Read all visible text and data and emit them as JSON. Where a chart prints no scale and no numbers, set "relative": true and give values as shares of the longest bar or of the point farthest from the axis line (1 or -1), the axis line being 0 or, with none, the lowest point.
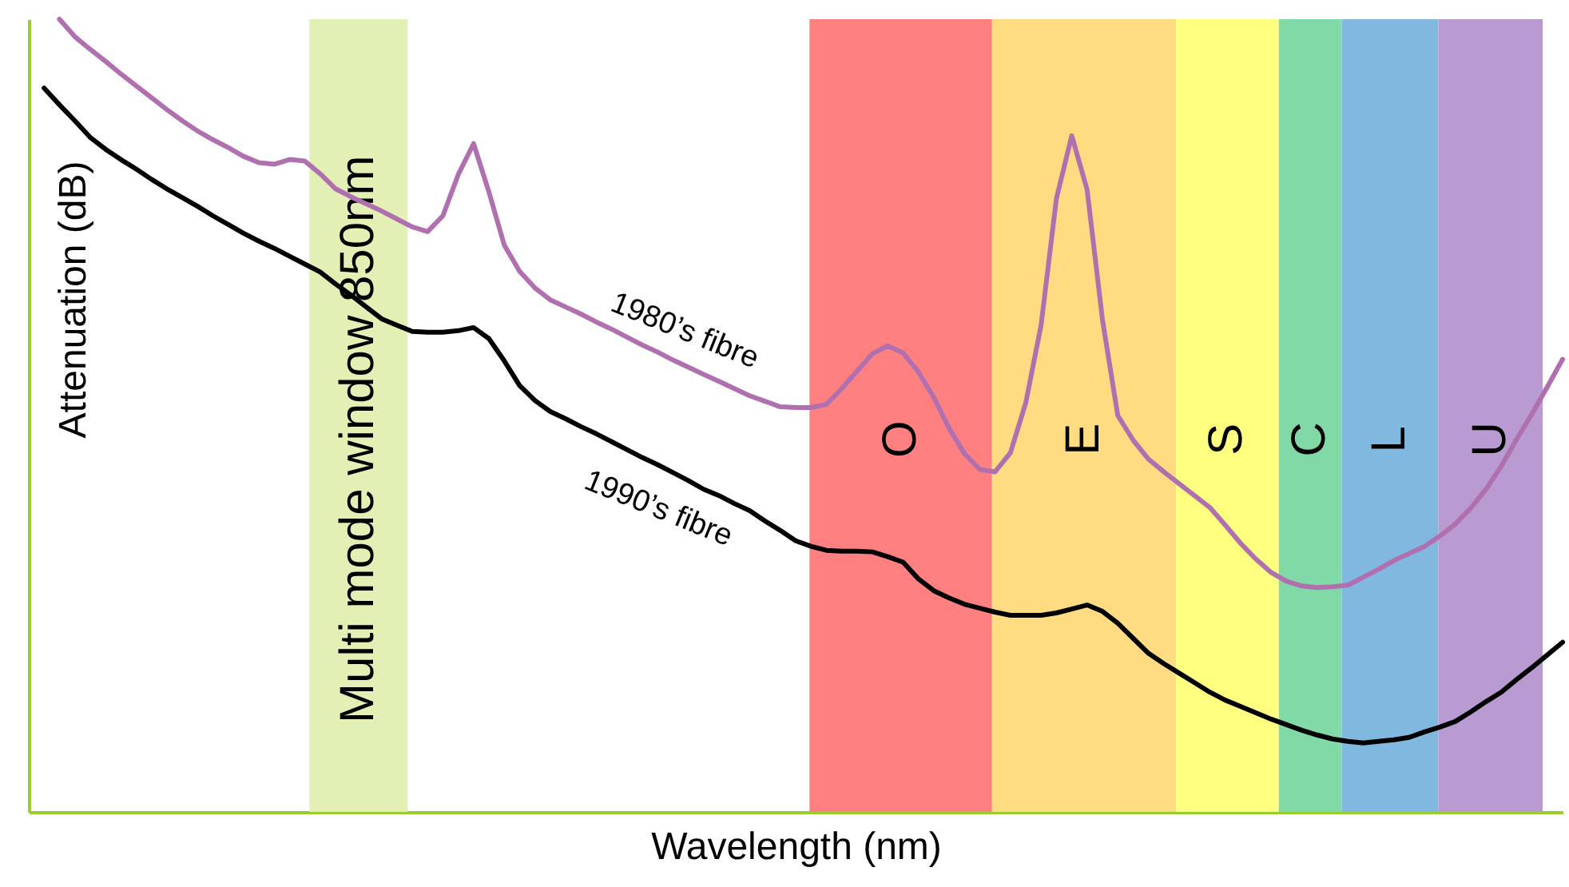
{
  "chart_data": {
    "type": "line",
    "relative": true,
    "xlabel": "Wavelength (nm)",
    "ylabel": "Attenuation (dB)",
    "categories": [
      null,
      null,
      null,
      null,
      null,
      null,
      null,
      null,
      null,
      null,
      null,
      null,
      null,
      null,
      null,
      null,
      null,
      null,
      null,
      null,
      null,
      null,
      null,
      null,
      null,
      null,
      null,
      null,
      null,
      null,
      null,
      null,
      null,
      null,
      null,
      null,
      null,
      null,
      null,
      null,
      null,
      null,
      null,
      null,
      null,
      null,
      null,
      null,
      null,
      null,
      null,
      null,
      null,
      null,
      null,
      null,
      null,
      null,
      null,
      null,
      null,
      null,
      null,
      null,
      null,
      null,
      null,
      null,
      null,
      null,
      null,
      null,
      null,
      null,
      null,
      null,
      null,
      null,
      null,
      null,
      null,
      null,
      null,
      null,
      null,
      null,
      null,
      null,
      null,
      null,
      null,
      null,
      null,
      null,
      null,
      null,
      null,
      null,
      null,
      null,
      null
    ],
    "annotations": [
      "Multi mode window 850nm",
      "O",
      "E",
      "S",
      "C",
      "L",
      "U"
    ],
    "series": [
      {
        "name": "1980’s fibre",
        "color": "#b070b0",
        "values": [
          null,
          null,
          1.0,
          0.978,
          0.962,
          0.947,
          0.931,
          0.916,
          0.901,
          0.886,
          0.872,
          0.859,
          0.848,
          0.838,
          0.827,
          0.819,
          0.817,
          0.823,
          0.821,
          0.805,
          0.786,
          0.776,
          0.767,
          0.758,
          0.748,
          0.738,
          0.732,
          0.752,
          0.804,
          0.843,
          0.782,
          0.715,
          0.682,
          0.661,
          0.646,
          0.637,
          0.628,
          0.618,
          0.609,
          0.599,
          0.589,
          0.58,
          0.57,
          0.561,
          0.552,
          0.543,
          0.534,
          0.525,
          0.518,
          0.511,
          0.51,
          0.51,
          0.514,
          0.534,
          0.556,
          0.578,
          0.588,
          0.579,
          0.555,
          0.523,
          0.484,
          0.452,
          0.432,
          0.429,
          0.453,
          0.516,
          0.614,
          0.774,
          0.853,
          0.785,
          0.621,
          0.5,
          0.469,
          0.445,
          0.429,
          0.414,
          0.399,
          0.384,
          0.362,
          0.339,
          0.319,
          0.302,
          0.291,
          0.285,
          0.283,
          0.284,
          0.286,
          0.296,
          0.306,
          0.317,
          0.326,
          0.335,
          0.348,
          0.363,
          0.383,
          0.407,
          0.436,
          0.47,
          0.502,
          0.536,
          0.571
        ]
      },
      {
        "name": "1990’s fibre",
        "color": "#000000",
        "values": [
          null,
          0.913,
          0.892,
          0.872,
          0.851,
          0.836,
          0.823,
          0.811,
          0.798,
          0.786,
          0.775,
          0.764,
          0.752,
          0.741,
          0.73,
          0.72,
          0.711,
          0.701,
          0.691,
          0.681,
          0.666,
          0.652,
          0.637,
          0.622,
          0.614,
          0.606,
          0.605,
          0.605,
          0.607,
          0.611,
          0.597,
          0.569,
          0.538,
          0.519,
          0.505,
          0.496,
          0.486,
          0.477,
          0.467,
          0.457,
          0.447,
          0.438,
          0.428,
          0.418,
          0.407,
          0.399,
          0.389,
          0.38,
          0.367,
          0.355,
          0.342,
          0.335,
          0.33,
          0.329,
          0.329,
          0.328,
          0.322,
          0.315,
          0.294,
          0.279,
          0.27,
          0.262,
          0.257,
          0.252,
          0.248,
          0.248,
          0.248,
          0.251,
          0.256,
          0.261,
          0.253,
          0.238,
          0.219,
          0.2,
          0.187,
          0.175,
          0.163,
          0.151,
          0.141,
          0.133,
          0.125,
          0.117,
          0.11,
          0.103,
          0.097,
          0.092,
          0.089,
          0.087,
          0.089,
          0.091,
          0.094,
          0.101,
          0.107,
          0.114,
          0.126,
          0.139,
          0.151,
          0.167,
          0.182,
          0.198,
          0.214
        ]
      }
    ]
  }
}
